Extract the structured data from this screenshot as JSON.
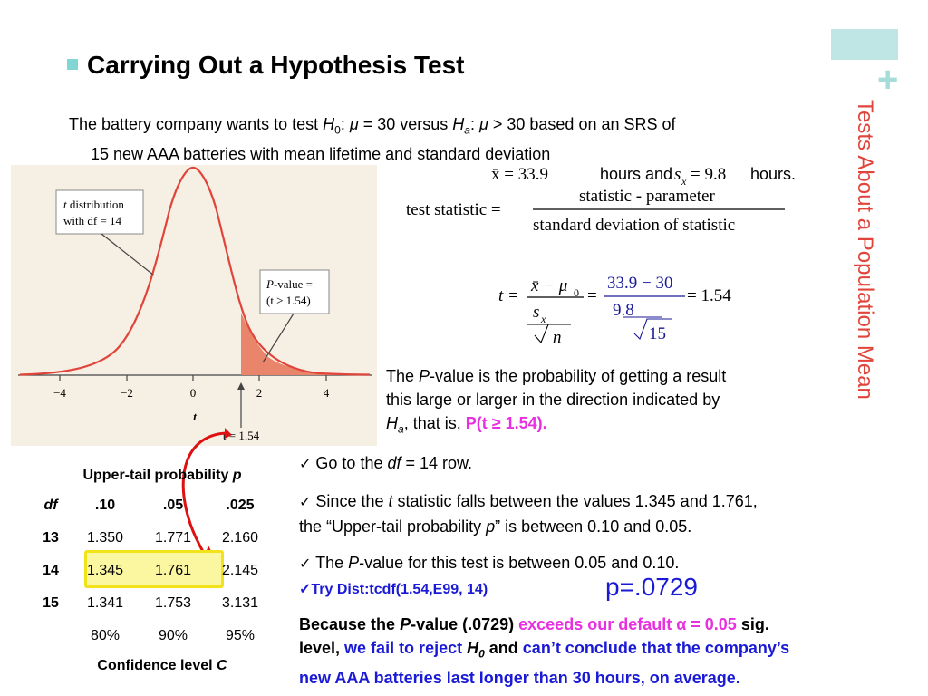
{
  "slide": {
    "side_title": "Tests About a Population Mean",
    "plus": "+",
    "heading": "Carrying Out a Hypothesis Test"
  },
  "intro": {
    "line1_a": "The battery company wants to test ",
    "H": "H",
    "sub0": "0",
    "line1_b": ": ",
    "mu": "μ",
    "line1_c": " = 30 versus ",
    "suba": "a",
    "line1_d": " > 30 based on an SRS of",
    "line2": "15 new AAA batteries with mean lifetime and standard deviation"
  },
  "graph": {
    "label_t_dist_1": "distribution",
    "label_t_dist_t": "t",
    "label_t_dist_2": "with df = 14",
    "label_p_1": "-value =",
    "label_p_P": "P",
    "label_p_2": "(t ≥ 1.54)",
    "ticks": [
      "−4",
      "−2",
      "0",
      "2",
      "4"
    ],
    "axis_label": "t",
    "marker_label": "t = 1.54"
  },
  "formula": {
    "xbar_text": "x̄ = 33.9",
    "hours_and": "hours and",
    "sx_text": "s",
    "sx_sub": "x",
    "sx_val": "= 9.8",
    "hours": "hours.",
    "test_stat": "test statistic =",
    "num": "statistic - parameter",
    "den": "standard deviation of statistic",
    "t_eq": "t =",
    "frac1_num": "x̄ − μ",
    "frac1_num_sub": "0",
    "frac1_den_s": "s",
    "frac1_den_sub": "x",
    "frac1_den_n": "n",
    "eq": "=",
    "frac2_num": "33.9 − 30",
    "frac2_den": "9.8",
    "frac2_den2": "15",
    "result": "= 1.54"
  },
  "pvalue": {
    "a": "The ",
    "P": "P",
    "b": "-value is the probability of getting a result",
    "c": "this large or larger in the direction indicated by",
    "H": "H",
    "sub": "a",
    "d": ", that is, ",
    "pink": "P(t ≥ 1.54)."
  },
  "steps": {
    "check": "✓",
    "s1_a": "Go to the ",
    "s1_df": "df",
    "s1_b": " = 14 row.",
    "s2_a": "Since the ",
    "s2_t": "t",
    "s2_b": " statistic falls between the values 1.345 and 1.761,",
    "s2_c": "the “Upper-tail probability ",
    "s2_p": "p",
    "s2_d": "” is between 0.10 and 0.05.",
    "s3_a": "The ",
    "s3_P": "P",
    "s3_b": "-value for this test is between 0.05 and 0.10."
  },
  "try": {
    "text": "✓Try Dist:tcdf(1.54,E99, 14)",
    "p_big": "p=.0729"
  },
  "conclusion": {
    "a": "Because the ",
    "P": "P",
    "b": "-value (.0729) ",
    "pink": "exceeds our default α = 0.05",
    "c": " sig.",
    "d": "level, ",
    "blue1": "we fail to reject ",
    "H": "H",
    "sub": "0",
    "e": " and ",
    "blue2": "can’t conclude that the company’s",
    "blue3": "new AAA batteries last longer than 30 hours, on average."
  },
  "table": {
    "title": "Upper-tail probability ",
    "title_p": "p",
    "header": [
      "df",
      ".10",
      ".05",
      ".025"
    ],
    "rows": [
      [
        "13",
        "1.350",
        "1.771",
        "2.160"
      ],
      [
        "14",
        "1.345",
        "1.761",
        "2.145"
      ],
      [
        "15",
        "1.341",
        "1.753",
        "3.131"
      ],
      [
        "",
        "80%",
        "90%",
        "95%"
      ]
    ],
    "footer": "Confidence level ",
    "footer_c": "C"
  }
}
